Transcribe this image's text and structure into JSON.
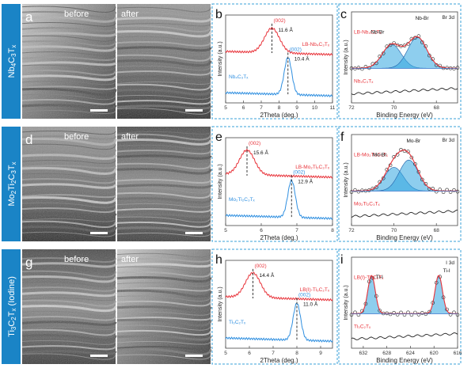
{
  "colors": {
    "band": "#1a84c6",
    "red": "#e8333a",
    "blue": "#2f8fe0",
    "dark": "#333333",
    "peak_fill": "#31a6e0",
    "dash_border": "#3aa0d8"
  },
  "rows": [
    {
      "material": [
        "Nb",
        "4",
        "C",
        "3",
        "T",
        "x",
        "",
        ""
      ],
      "sem": {
        "letter": "a",
        "before": "before",
        "after": "after"
      },
      "xrd": {
        "letter": "b",
        "ylabel": "Intensity (a.u.)",
        "xlabel": "2Theta (deg.)",
        "xmin": 5,
        "xmax": 11,
        "ticks": [
          5,
          6,
          7,
          8,
          9,
          10,
          11
        ],
        "top": {
          "label": "LB-Nb₄C₃Tₓ",
          "peak": "(002)",
          "d": "11.6 Å",
          "pos": 7.6
        },
        "bottom": {
          "label": "Nb₄C₃Tₓ",
          "peak": "(002)",
          "d": "10.4 Å",
          "pos": 8.5
        }
      },
      "xps": {
        "letter": "c",
        "core": "Br 3d",
        "xlabel": "Binding Energy (eV)",
        "xmax": 72,
        "xmin": 67,
        "ticks": [
          72,
          70,
          68
        ],
        "top_label": "LB-Nb₄C₃Tₓ",
        "bottom_label": "Nb₄C₃Tₓ",
        "peak_labels": [
          "Nb-Br",
          "Nb-Br"
        ],
        "peaks": [
          70.1,
          68.9
        ]
      }
    },
    {
      "material": [
        "Mo",
        "2",
        "Ti",
        "2",
        "C",
        "3",
        "T",
        "x"
      ],
      "sem": {
        "letter": "d",
        "before": "before",
        "after": "after"
      },
      "xrd": {
        "letter": "e",
        "ylabel": "Intensity (a.u.)",
        "xlabel": "2Theta (deg.)",
        "xmin": 5,
        "xmax": 8,
        "ticks": [
          5,
          6,
          7,
          8
        ],
        "top": {
          "label": "LB-Mo₂Ti₂C₃Tₓ",
          "peak": "(002)",
          "d": "15.6 Å",
          "pos": 5.6
        },
        "bottom": {
          "label": "Mo₂Ti₂C₃Tₓ",
          "peak": "(002)",
          "d": "12.9 Å",
          "pos": 6.85
        }
      },
      "xps": {
        "letter": "f",
        "core": "Br 3d",
        "xlabel": "Binding Energy (eV)",
        "xmax": 72,
        "xmin": 67,
        "ticks": [
          72,
          70,
          68
        ],
        "top_label": "LB-Mo₂Ti₂C₃Tₓ",
        "bottom_label": "Mo₂Ti₂C₃Tₓ",
        "peak_labels": [
          "Mo-Br",
          "Mo-Br"
        ],
        "peaks": [
          70.0,
          69.3
        ]
      }
    },
    {
      "material": [
        "Ti",
        "3",
        "C",
        "2",
        "T",
        "x",
        " (Iodine)",
        ""
      ],
      "sem": {
        "letter": "g",
        "before": "before",
        "after": "after"
      },
      "xrd": {
        "letter": "h",
        "ylabel": "Intensity (a.u.)",
        "xlabel": "2Theta (deg.)",
        "xmin": 5,
        "xmax": 9.5,
        "ticks": [
          5,
          6,
          7,
          8,
          9
        ],
        "top": {
          "label": "LB(I)-Ti₃C₂Tₓ",
          "peak": "(002)",
          "d": "14.4 Å",
          "pos": 6.15
        },
        "bottom": {
          "label": "Ti₃C₂Tₓ",
          "peak": "(002)",
          "d": "11.0 Å",
          "pos": 8.0
        }
      },
      "xps": {
        "letter": "i",
        "core": "I 3d",
        "xlabel": "Binding Energy (eV)",
        "xmax": 634,
        "xmin": 616,
        "ticks": [
          632,
          628,
          624,
          620,
          616
        ],
        "top_label": "LB(I)-Ti₃C₂Tₓ",
        "bottom_label": "Ti₃C₂Tₓ",
        "peak_labels": [
          "Ti-I",
          "Ti-I"
        ],
        "peaks": [
          630.6,
          619.2
        ]
      }
    }
  ]
}
